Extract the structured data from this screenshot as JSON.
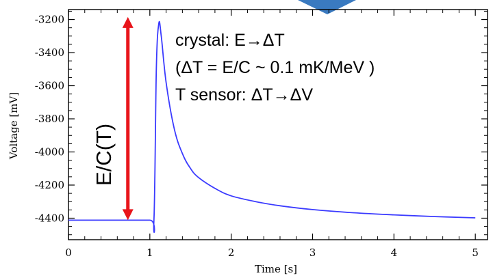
{
  "chart_data": {
    "type": "line",
    "title": "",
    "xlabel": "Time [s]",
    "ylabel": "Voltage [mV]",
    "xlim": [
      0,
      5.15
    ],
    "ylim": [
      -4530,
      -3140
    ],
    "x_ticks": [
      0,
      1,
      2,
      3,
      4,
      5
    ],
    "y_ticks": [
      -3200,
      -3400,
      -3600,
      -3800,
      -4000,
      -4200,
      -4400
    ],
    "grid": false,
    "series_color": "#3b3bff",
    "arrow_color": "#e8141a",
    "series": [
      {
        "points": [
          [
            0.0,
            -4412
          ],
          [
            0.5,
            -4412
          ],
          [
            1.0,
            -4412
          ],
          [
            1.05,
            -4412
          ],
          [
            1.08,
            -3500
          ],
          [
            1.11,
            -3225
          ],
          [
            1.14,
            -3300
          ],
          [
            1.2,
            -3580
          ],
          [
            1.3,
            -3860
          ],
          [
            1.4,
            -4010
          ],
          [
            1.5,
            -4100
          ],
          [
            1.6,
            -4155
          ],
          [
            1.8,
            -4220
          ],
          [
            2.0,
            -4265
          ],
          [
            2.3,
            -4300
          ],
          [
            2.6,
            -4325
          ],
          [
            3.0,
            -4348
          ],
          [
            3.5,
            -4367
          ],
          [
            4.0,
            -4380
          ],
          [
            4.5,
            -4390
          ],
          [
            5.0,
            -4398
          ]
        ]
      }
    ],
    "annotations": {
      "line1": "crystal: E→ΔT",
      "line2": "(ΔT = E/C ~ 0.1 mK/MeV )",
      "line3": "T sensor: ΔT→ΔV",
      "arrow_label": "E/C(T)",
      "arrow_x": 0.73,
      "arrow_y_top": -3185,
      "arrow_y_bottom": -4412
    },
    "decoration_color": "#3a7ac0"
  }
}
